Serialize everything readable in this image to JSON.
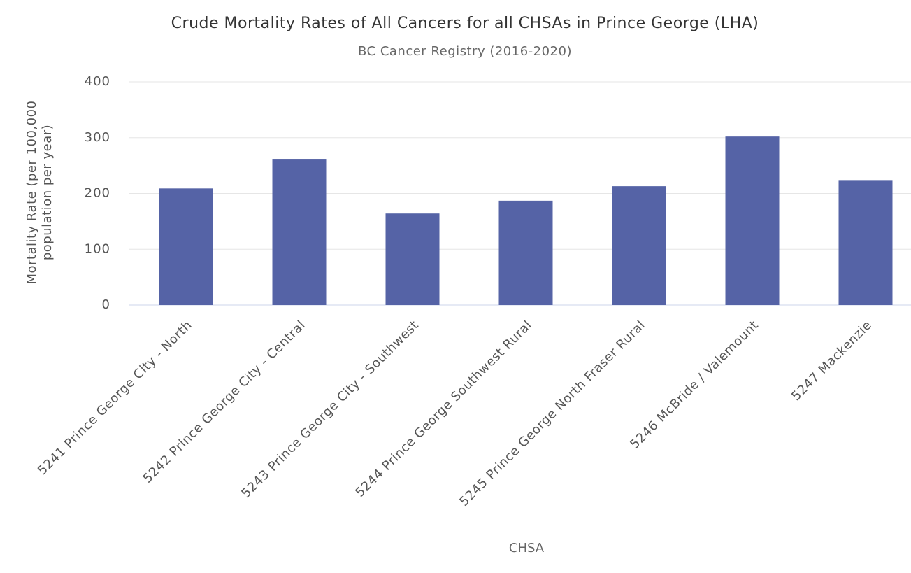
{
  "chart_data": {
    "type": "bar",
    "title": "Crude Mortality Rates of All Cancers for all CHSAs in Prince George (LHA)",
    "subtitle": "BC Cancer Registry (2016-2020)",
    "x_label": "CHSA",
    "y_label": "Mortality Rate (per 100,000 population per year)",
    "categories": [
      "5241 Prince George City - North",
      "5242 Prince George City - Central",
      "5243 Prince George City - Southwest",
      "5244 Prince George Southwest Rural",
      "5245 Prince George North Fraser Rural",
      "5246 McBride / Valemount",
      "5247 Mackenzie"
    ],
    "values": [
      209,
      262,
      164,
      187,
      213,
      302,
      224
    ],
    "color": "#5563a6",
    "ylim": [
      0,
      400
    ],
    "yticks": [
      0,
      100,
      200,
      300,
      400
    ],
    "grid": true
  }
}
